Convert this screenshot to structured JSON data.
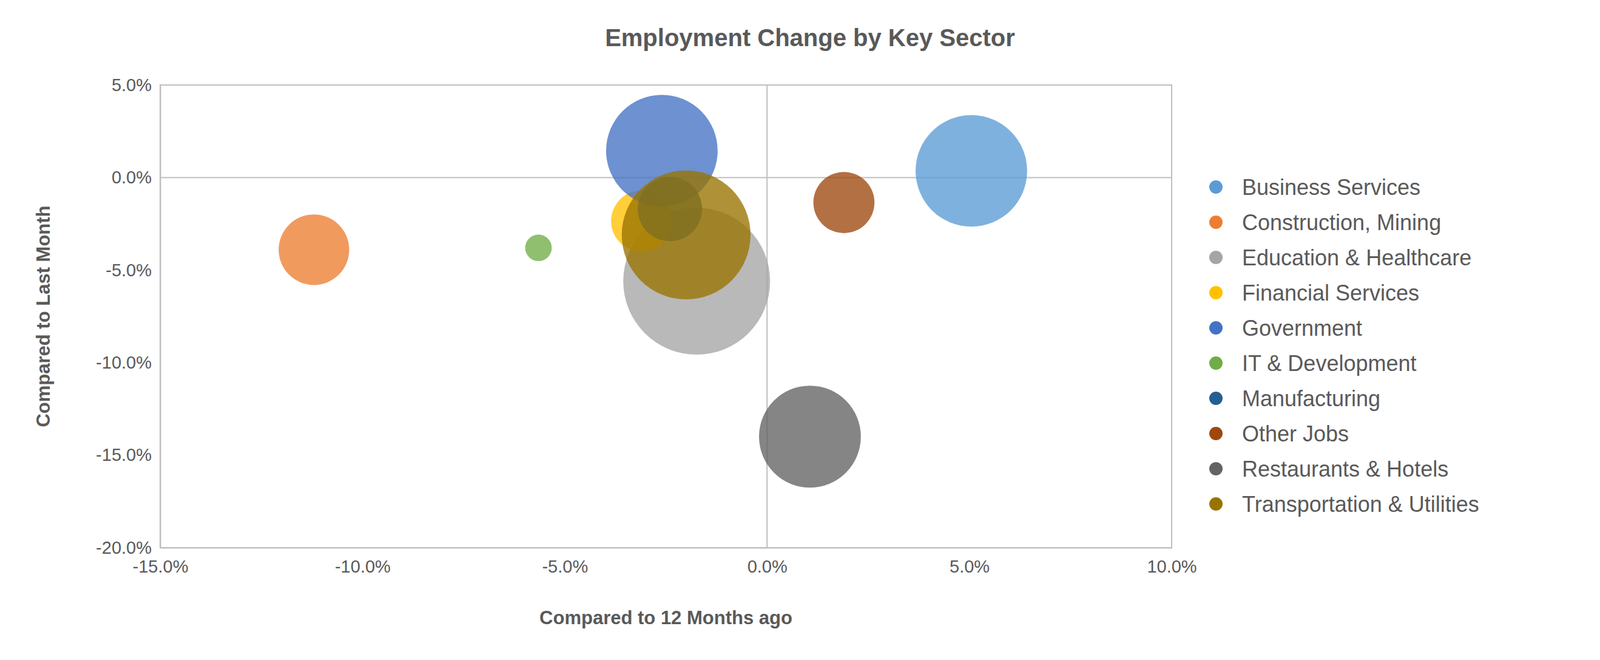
{
  "chart_data": {
    "type": "bubble",
    "title": "Employment Change by Key Sector",
    "x_label": "Compared to 12 Months ago",
    "y_label": "Compared to Last Month",
    "xlim": [
      -15,
      10
    ],
    "ylim": [
      -20,
      5
    ],
    "xticks": [
      {
        "value": -15,
        "label": "-15.0%"
      },
      {
        "value": -10,
        "label": "-10.0%"
      },
      {
        "value": -5,
        "label": "-5.0%"
      },
      {
        "value": 0,
        "label": "0.0%"
      },
      {
        "value": 5,
        "label": "5.0%"
      },
      {
        "value": 10,
        "label": "10.0%"
      }
    ],
    "yticks": [
      {
        "value": 5,
        "label": "5.0%"
      },
      {
        "value": 0,
        "label": "0.0%"
      },
      {
        "value": -5,
        "label": "-5.0%"
      },
      {
        "value": -10,
        "label": "-10.0%"
      },
      {
        "value": -15,
        "label": "-15.0%"
      },
      {
        "value": -20,
        "label": "-20.0%"
      }
    ],
    "grid": false,
    "legend": "right",
    "series": [
      {
        "name": "Business Services",
        "color": "#5b9bd5",
        "x": [
          5.05
        ],
        "values": [
          0.36
        ],
        "size": [
          30
        ]
      },
      {
        "name": "Construction, Mining",
        "color": "#ed7d31",
        "x": [
          -11.2
        ],
        "values": [
          -3.9
        ],
        "size": [
          12
        ]
      },
      {
        "name": "Education & Healthcare",
        "color": "#a5a5a5",
        "x": [
          -1.74
        ],
        "values": [
          -5.6
        ],
        "size": [
          52
        ]
      },
      {
        "name": "Financial Services",
        "color": "#ffc000",
        "x": [
          -3.1
        ],
        "values": [
          -2.35
        ],
        "size": [
          9
        ]
      },
      {
        "name": "Government",
        "color": "#4472c4",
        "x": [
          -2.6
        ],
        "values": [
          1.45
        ],
        "size": [
          30
        ]
      },
      {
        "name": "IT & Development",
        "color": "#70ad47",
        "x": [
          -5.65
        ],
        "values": [
          -3.8
        ],
        "size": [
          1.7
        ]
      },
      {
        "name": "Manufacturing",
        "color": "#255e91",
        "x": [
          -2.4
        ],
        "values": [
          -1.7
        ],
        "size": [
          10
        ]
      },
      {
        "name": "Other Jobs",
        "color": "#9e480e",
        "x": [
          1.9
        ],
        "values": [
          -1.35
        ],
        "size": [
          9
        ]
      },
      {
        "name": "Restaurants & Hotels",
        "color": "#636363",
        "x": [
          1.06
        ],
        "values": [
          -14.0
        ],
        "size": [
          25
        ]
      },
      {
        "name": "Transportation & Utilities",
        "color": "#997300",
        "x": [
          -2.0
        ],
        "values": [
          -3.1
        ],
        "size": [
          40
        ]
      }
    ]
  }
}
